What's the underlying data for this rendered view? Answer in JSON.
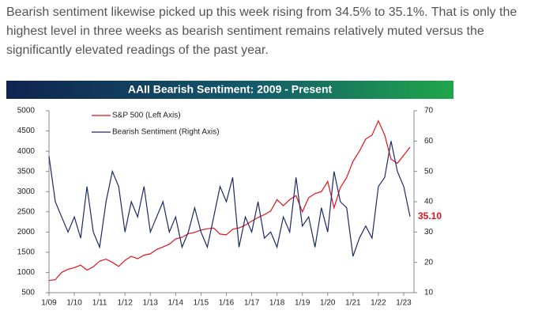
{
  "paragraph": "Bearish sentiment likewise picked up this week rising from 34.5% to 35.1%.  That is only the highest level in three weeks as bearish sentiment remains relatively muted versus the significantly elevated readings of the past year.",
  "chart_data": {
    "type": "line",
    "title": "AAII Bearish Sentiment: 2009 - Present",
    "categories": [
      "1/09",
      null,
      null,
      null,
      "1/10",
      null,
      null,
      null,
      "1/11",
      null,
      null,
      null,
      "1/12",
      null,
      null,
      null,
      "1/13",
      null,
      null,
      null,
      "1/14",
      null,
      null,
      null,
      "1/15",
      null,
      null,
      null,
      "1/16",
      null,
      null,
      null,
      "1/17",
      null,
      null,
      null,
      "1/18",
      null,
      null,
      null,
      "1/19",
      null,
      null,
      null,
      "1/20",
      null,
      null,
      null,
      "1/21",
      null,
      null,
      null,
      "1/22",
      null,
      null,
      null,
      "1/23",
      null
    ],
    "series": [
      {
        "name": "S&P 500 (Left Axis)",
        "color": "#e3121b",
        "axis": "y",
        "values": [
          800,
          820,
          1000,
          1080,
          1120,
          1180,
          1060,
          1140,
          1280,
          1330,
          1250,
          1150,
          1300,
          1400,
          1340,
          1430,
          1460,
          1570,
          1630,
          1700,
          1830,
          1870,
          1960,
          1990,
          2050,
          2080,
          2100,
          1950,
          1930,
          2070,
          2100,
          2170,
          2270,
          2360,
          2430,
          2520,
          2800,
          2650,
          2800,
          2900,
          2500,
          2850,
          2950,
          3000,
          3250,
          2600,
          3100,
          3350,
          3750,
          4000,
          4300,
          4400,
          4750,
          4400,
          3800,
          3700,
          3900,
          4100
        ]
      },
      {
        "name": "Bearish Sentiment (Right Axis)",
        "color": "#1c2a66",
        "axis": "y2",
        "values": [
          55,
          40,
          35,
          30,
          35,
          28,
          45,
          30,
          25,
          40,
          50,
          45,
          30,
          40,
          35,
          45,
          30,
          35,
          40,
          30,
          35,
          25,
          30,
          38,
          30,
          25,
          35,
          45,
          40,
          48,
          25,
          35,
          30,
          40,
          28,
          30,
          25,
          35,
          30,
          48,
          32,
          35,
          25,
          38,
          30,
          50,
          40,
          38,
          22,
          28,
          32,
          28,
          45,
          48,
          60,
          50,
          45,
          35.1
        ]
      }
    ],
    "end_label": {
      "value": 35.1,
      "label": "35.10"
    },
    "ylim": [
      500,
      5000
    ],
    "yticks": [
      500,
      1000,
      1500,
      2000,
      2500,
      3000,
      3500,
      4000,
      4500,
      5000
    ],
    "y2lim": [
      10,
      70
    ],
    "y2ticks": [
      10,
      20,
      30,
      40,
      50,
      60,
      70
    ]
  }
}
